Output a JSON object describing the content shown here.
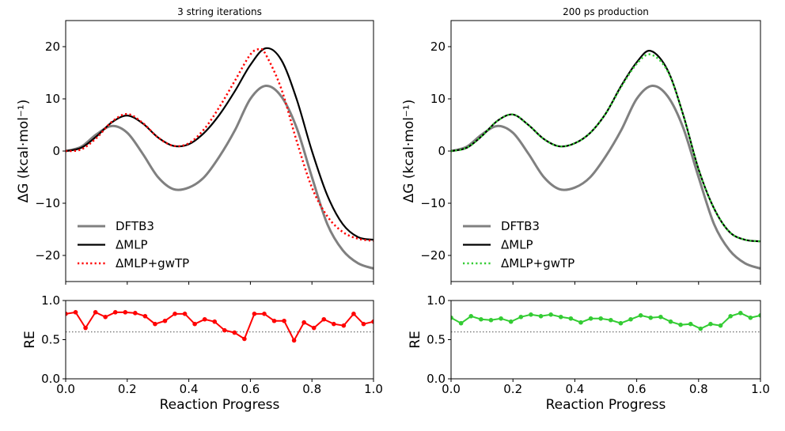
{
  "chart_data": [
    {
      "panel": "left-top",
      "type": "line",
      "title": "3 string iterations",
      "xlabel": "",
      "ylabel": "ΔG (kcal·mol⁻¹)",
      "xlim": [
        0,
        1
      ],
      "ylim": [
        -25,
        25
      ],
      "yticks": [
        -20,
        -10,
        0,
        10,
        20
      ],
      "ytick_labels": [
        "−20",
        "−10",
        "0",
        "10",
        "20"
      ],
      "grid": false,
      "legend_position": "lower-left",
      "series": [
        {
          "name": "DFTB3",
          "color": "#808080",
          "style": "solid",
          "x": [
            0,
            0.05,
            0.1,
            0.15,
            0.2,
            0.25,
            0.3,
            0.35,
            0.4,
            0.45,
            0.5,
            0.55,
            0.6,
            0.65,
            0.7,
            0.75,
            0.8,
            0.85,
            0.9,
            0.95,
            1.0
          ],
          "y": [
            0,
            0.8,
            3.2,
            4.8,
            3.5,
            -0.5,
            -5,
            -7.3,
            -7.0,
            -5.0,
            -1,
            4,
            10,
            12.5,
            10.5,
            4.5,
            -5,
            -14,
            -19,
            -21.5,
            -22.5
          ]
        },
        {
          "name": "ΔMLP",
          "color": "#000000",
          "style": "solid",
          "x": [
            0,
            0.05,
            0.1,
            0.15,
            0.2,
            0.25,
            0.3,
            0.35,
            0.4,
            0.45,
            0.5,
            0.55,
            0.6,
            0.65,
            0.7,
            0.75,
            0.8,
            0.85,
            0.9,
            0.95,
            1.0
          ],
          "y": [
            0,
            0.6,
            2.8,
            5.5,
            6.8,
            5.3,
            2.6,
            1.0,
            1.3,
            3.5,
            7,
            11.5,
            16.5,
            19.7,
            17.5,
            10,
            0,
            -8.5,
            -14,
            -16.5,
            -17
          ]
        },
        {
          "name": "ΔMLP+gwTP",
          "color": "#ff0000",
          "style": "dotted",
          "x": [
            0,
            0.05,
            0.1,
            0.15,
            0.2,
            0.25,
            0.3,
            0.35,
            0.4,
            0.45,
            0.5,
            0.55,
            0.6,
            0.63,
            0.65,
            0.7,
            0.75,
            0.8,
            0.85,
            0.9,
            0.95,
            1.0
          ],
          "y": [
            0,
            0.3,
            2.5,
            5.6,
            7.1,
            5.4,
            2.6,
            1.0,
            1.5,
            4.2,
            8.5,
            13.5,
            18.5,
            19.5,
            18.5,
            12,
            2,
            -7,
            -12.5,
            -15.5,
            -16.8,
            -17.2
          ]
        }
      ]
    },
    {
      "panel": "left-bottom",
      "type": "line",
      "title": "",
      "xlabel": "Reaction Progress",
      "ylabel": "RE",
      "xlim": [
        0,
        1
      ],
      "ylim": [
        0,
        1
      ],
      "xticks": [
        0,
        0.2,
        0.4,
        0.6,
        0.8,
        1.0
      ],
      "xtick_labels": [
        "0.0",
        "0.2",
        "0.4",
        "0.6",
        "0.8",
        "1.0"
      ],
      "yticks": [
        0,
        0.5,
        1.0
      ],
      "ytick_labels": [
        "0.0",
        "0.5",
        "1.0"
      ],
      "reference_line": {
        "y": 0.6,
        "color": "#808080",
        "style": "dotted"
      },
      "series": [
        {
          "name": "RE",
          "color": "#ff0000",
          "markers": true,
          "y": [
            0.83,
            0.85,
            0.65,
            0.85,
            0.79,
            0.85,
            0.85,
            0.84,
            0.8,
            0.7,
            0.74,
            0.83,
            0.83,
            0.7,
            0.76,
            0.73,
            0.62,
            0.59,
            0.51,
            0.83,
            0.83,
            0.74,
            0.74,
            0.49,
            0.72,
            0.65,
            0.76,
            0.7,
            0.68,
            0.83,
            0.7,
            0.73
          ]
        }
      ]
    },
    {
      "panel": "right-top",
      "type": "line",
      "title": "200 ps production",
      "xlabel": "",
      "ylabel": "ΔG (kcal·mol⁻¹)",
      "xlim": [
        0,
        1
      ],
      "ylim": [
        -25,
        25
      ],
      "yticks": [
        -20,
        -10,
        0,
        10,
        20
      ],
      "ytick_labels": [
        "−20",
        "−10",
        "0",
        "10",
        "20"
      ],
      "grid": false,
      "legend_position": "lower-left",
      "series": [
        {
          "name": "DFTB3",
          "color": "#808080",
          "style": "solid",
          "x": [
            0,
            0.05,
            0.1,
            0.15,
            0.2,
            0.25,
            0.3,
            0.35,
            0.4,
            0.45,
            0.5,
            0.55,
            0.6,
            0.65,
            0.7,
            0.75,
            0.8,
            0.85,
            0.9,
            0.95,
            1.0
          ],
          "y": [
            0,
            0.8,
            3.2,
            4.8,
            3.5,
            -0.5,
            -5,
            -7.3,
            -7.0,
            -5.0,
            -1,
            4,
            10,
            12.5,
            10.5,
            4.5,
            -5,
            -14,
            -19,
            -21.5,
            -22.5
          ]
        },
        {
          "name": "ΔMLP",
          "color": "#000000",
          "style": "solid",
          "x": [
            0,
            0.05,
            0.1,
            0.15,
            0.2,
            0.25,
            0.3,
            0.35,
            0.4,
            0.45,
            0.5,
            0.55,
            0.6,
            0.645,
            0.7,
            0.75,
            0.8,
            0.85,
            0.9,
            0.95,
            1.0
          ],
          "y": [
            0,
            0.6,
            2.9,
            5.8,
            7.0,
            5.0,
            2.3,
            0.9,
            1.5,
            3.5,
            7.2,
            12.5,
            17.0,
            19.2,
            15.5,
            7,
            -3.5,
            -11,
            -15.5,
            -17,
            -17.3
          ]
        },
        {
          "name": "ΔMLP+gwTP",
          "color": "#33cc33",
          "style": "dotted",
          "x": [
            0,
            0.05,
            0.1,
            0.15,
            0.2,
            0.25,
            0.3,
            0.35,
            0.4,
            0.45,
            0.5,
            0.55,
            0.6,
            0.645,
            0.7,
            0.75,
            0.8,
            0.85,
            0.9,
            0.95,
            1.0
          ],
          "y": [
            0,
            0.6,
            2.9,
            5.8,
            7.0,
            5.0,
            2.3,
            0.9,
            1.5,
            3.5,
            7.2,
            12.3,
            16.7,
            18.5,
            15.3,
            7,
            -3.5,
            -11,
            -15.5,
            -17,
            -17.3
          ]
        }
      ]
    },
    {
      "panel": "right-bottom",
      "type": "line",
      "title": "",
      "xlabel": "Reaction Progress",
      "ylabel": "RE",
      "xlim": [
        0,
        1
      ],
      "ylim": [
        0,
        1
      ],
      "xticks": [
        0,
        0.2,
        0.4,
        0.6,
        0.8,
        1.0
      ],
      "xtick_labels": [
        "0.0",
        "0.2",
        "0.4",
        "0.6",
        "0.8",
        "1.0"
      ],
      "yticks": [
        0,
        0.5,
        1.0
      ],
      "ytick_labels": [
        "0.0",
        "0.5",
        "1.0"
      ],
      "reference_line": {
        "y": 0.6,
        "color": "#808080",
        "style": "dotted"
      },
      "series": [
        {
          "name": "RE",
          "color": "#33cc33",
          "markers": true,
          "y": [
            0.78,
            0.71,
            0.8,
            0.76,
            0.75,
            0.77,
            0.73,
            0.79,
            0.82,
            0.8,
            0.82,
            0.79,
            0.77,
            0.72,
            0.77,
            0.77,
            0.75,
            0.71,
            0.76,
            0.81,
            0.78,
            0.79,
            0.73,
            0.69,
            0.7,
            0.64,
            0.7,
            0.68,
            0.8,
            0.84,
            0.78,
            0.81
          ]
        }
      ]
    }
  ]
}
